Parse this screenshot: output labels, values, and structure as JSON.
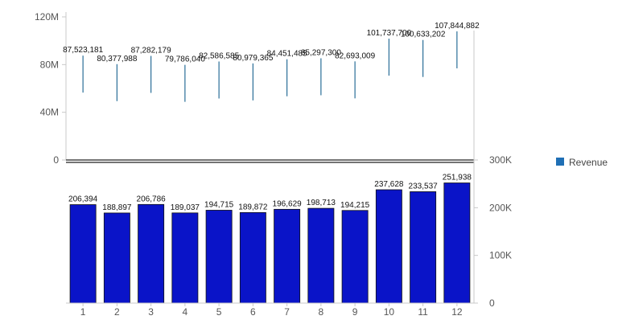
{
  "chart_data": {
    "type": "bar",
    "categories": [
      "1",
      "2",
      "3",
      "4",
      "5",
      "6",
      "7",
      "8",
      "9",
      "10",
      "11",
      "12"
    ],
    "series": [
      {
        "name": "Revenue",
        "chart": "top",
        "kind": "range-line",
        "values": [
          87523181,
          80377988,
          87282179,
          79786040,
          82586585,
          80979365,
          84451485,
          85297300,
          82693009,
          101737700,
          100633202,
          107844882
        ],
        "value_labels": [
          "87,523,181",
          "80,377,988",
          "87,282,179",
          "79,786,040",
          "82,586,585",
          "80,979,365",
          "84,451,485",
          "85,297,300",
          "82,693,009",
          "101,737,700",
          "100,633,202",
          "107,844,882"
        ],
        "color": "#2a6f97"
      },
      {
        "chart": "bottom",
        "kind": "bar",
        "values": [
          206394,
          188897,
          206786,
          189037,
          194715,
          189872,
          196629,
          198713,
          194215,
          237628,
          233537,
          251938
        ],
        "value_labels": [
          "206,394",
          "188,897",
          "206,786",
          "189,037",
          "194,715",
          "189,872",
          "196,629",
          "198,713",
          "194,215",
          "237,628",
          "233,537",
          "251,938"
        ],
        "color": "#0a14c8"
      }
    ],
    "top_axis": {
      "ylim": [
        0,
        120000000
      ],
      "ticks": [
        0,
        40000000,
        80000000,
        120000000
      ],
      "tick_labels": [
        "0",
        "40M",
        "80M",
        "120M"
      ]
    },
    "bottom_axis": {
      "ylim": [
        0,
        300000
      ],
      "ticks": [
        0,
        100000,
        200000,
        300000
      ],
      "tick_labels": [
        "0",
        "100K",
        "200K",
        "300K"
      ]
    },
    "legend": {
      "placement": "right",
      "entries": [
        "Revenue"
      ],
      "color": "#1f6fb5"
    },
    "grid": false,
    "title": "",
    "xlabel": "",
    "ylabel": ""
  }
}
